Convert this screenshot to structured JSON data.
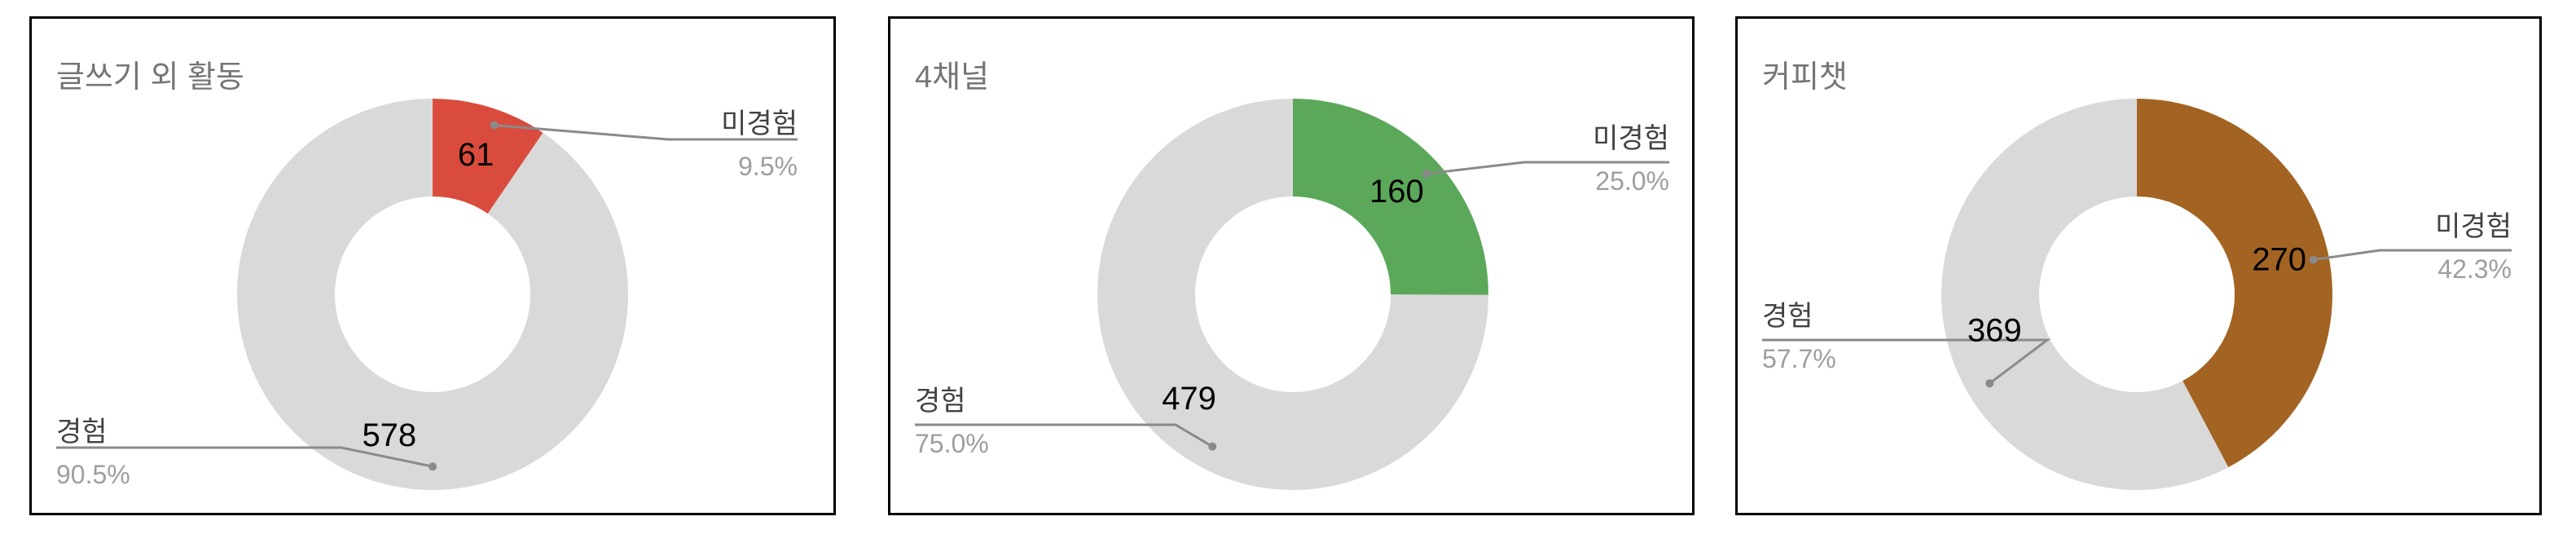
{
  "chart_data": [
    {
      "type": "donut",
      "title": "글쓰기 외 활동",
      "slices": [
        {
          "label": "미경험",
          "value": 61,
          "percent": "9.5%",
          "color": "#d94c3d"
        },
        {
          "label": "경험",
          "value": 578,
          "percent": "90.5%",
          "color": "#d9d9d9"
        }
      ]
    },
    {
      "type": "donut",
      "title": "4채널",
      "slices": [
        {
          "label": "미경험",
          "value": 160,
          "percent": "25.0%",
          "color": "#5ba85a"
        },
        {
          "label": "경험",
          "value": 479,
          "percent": "75.0%",
          "color": "#d9d9d9"
        }
      ]
    },
    {
      "type": "donut",
      "title": "커피챗",
      "slices": [
        {
          "label": "미경험",
          "value": 270,
          "percent": "42.3%",
          "color": "#a36322"
        },
        {
          "label": "경험",
          "value": 369,
          "percent": "57.7%",
          "color": "#d9d9d9"
        }
      ]
    }
  ]
}
